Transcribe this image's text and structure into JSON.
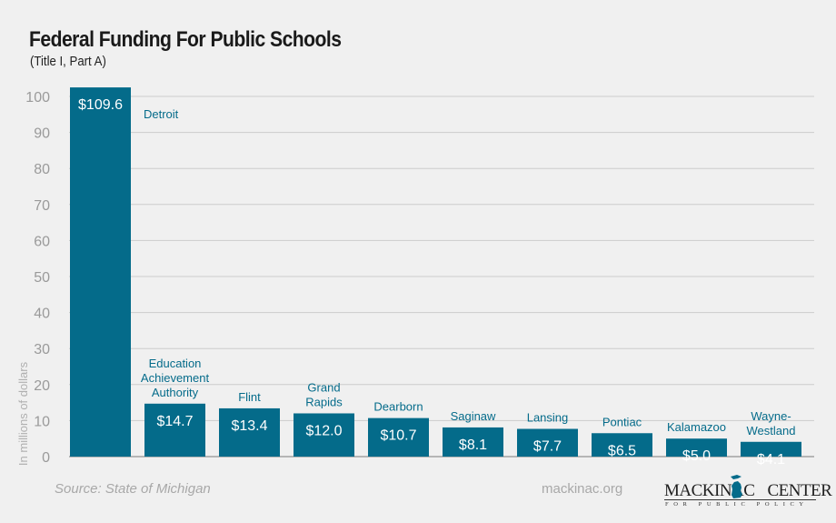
{
  "header": {
    "title": "Federal Funding For Public Schools",
    "subtitle": "(Title I, Part A)"
  },
  "footer": {
    "source": "Source: State of Michigan",
    "site": "mackinac.org",
    "logo_left": "MACKINAC",
    "logo_right": "CENTER",
    "logo_sub": "FOR PUBLIC POLICY",
    "logo_icon": "michigan-map-icon"
  },
  "colors": {
    "bar": "#046b8a",
    "label": "#046b8a",
    "grid": "#cccccc",
    "axis_text": "#9a9a9a",
    "background": "#f0f0f0"
  },
  "chart_data": {
    "type": "bar",
    "title": "Federal Funding For Public Schools",
    "subtitle": "(Title I, Part A)",
    "xlabel": "",
    "ylabel": "In millions of dollars",
    "ylim": [
      0,
      100
    ],
    "yticks": [
      0,
      10,
      20,
      30,
      40,
      50,
      60,
      70,
      80,
      90,
      100
    ],
    "grid": true,
    "categories": [
      "Detroit",
      "Education Achievement Authority",
      "Flint",
      "Grand Rapids",
      "Dearborn",
      "Saginaw",
      "Lansing",
      "Pontiac",
      "Kalamazoo",
      "Wayne-Westland"
    ],
    "category_lines": [
      [
        "Detroit"
      ],
      [
        "Education",
        "Achievement",
        "Authority"
      ],
      [
        "Flint"
      ],
      [
        "Grand",
        "Rapids"
      ],
      [
        "Dearborn"
      ],
      [
        "Saginaw"
      ],
      [
        "Lansing"
      ],
      [
        "Pontiac"
      ],
      [
        "Kalamazoo"
      ],
      [
        "Wayne-",
        "Westland"
      ]
    ],
    "values": [
      109.6,
      14.7,
      13.4,
      12.0,
      10.7,
      8.1,
      7.7,
      6.5,
      5.0,
      4.1
    ],
    "value_labels": [
      "$109.6",
      "$14.7",
      "$13.4",
      "$12.0",
      "$10.7",
      "$8.1",
      "$7.7",
      "$6.5",
      "$5.0",
      "$4.1"
    ],
    "note": "Detroit bar truncated at top of axis"
  }
}
